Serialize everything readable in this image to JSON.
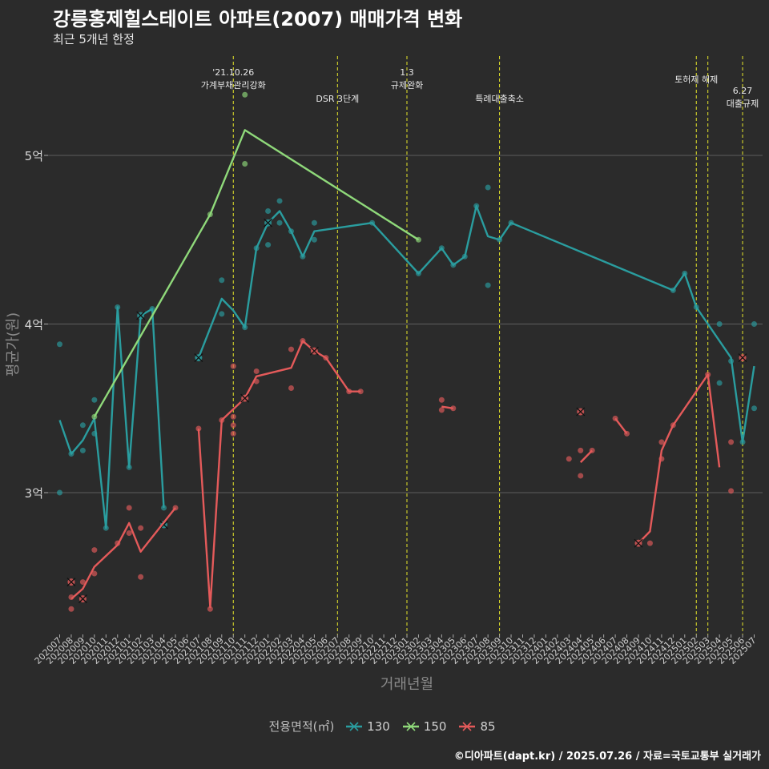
{
  "title": "강릉홍제힐스테이트 아파트(2007) 매매가격 변화",
  "subtitle": "최근 5개년 한정",
  "caption": "©디아파트(dapt.kr) / 2025.07.26 / 자료=국토교통부 실거래가",
  "legend": {
    "title": "전용면적(㎡)",
    "items": [
      {
        "label": "130",
        "color": "#2a9d9f"
      },
      {
        "label": "150",
        "color": "#8fd97a"
      },
      {
        "label": "85",
        "color": "#e45a5a"
      }
    ]
  },
  "chart_data": {
    "type": "line",
    "xlabel": "거래년월",
    "ylabel": "평균가(원)",
    "categories": [
      "202007",
      "202008",
      "202009",
      "202010",
      "202011",
      "202012",
      "202101",
      "202102",
      "202103",
      "202104",
      "202105",
      "202106",
      "202107",
      "202108",
      "202109",
      "202110",
      "202111",
      "202112",
      "202201",
      "202202",
      "202203",
      "202204",
      "202205",
      "202206",
      "202207",
      "202208",
      "202209",
      "202210",
      "202211",
      "202212",
      "202301",
      "202302",
      "202303",
      "202304",
      "202305",
      "202306",
      "202307",
      "202308",
      "202309",
      "202310",
      "202311",
      "202312",
      "202401",
      "202402",
      "202403",
      "202404",
      "202405",
      "202406",
      "202407",
      "202408",
      "202409",
      "202410",
      "202411",
      "202412",
      "202501",
      "202502",
      "202503",
      "202504",
      "202505",
      "202506",
      "202507"
    ],
    "y_ticks": [
      {
        "value": 3.0,
        "label": "3억"
      },
      {
        "value": 4.0,
        "label": "4억"
      },
      {
        "value": 5.0,
        "label": "5억"
      }
    ],
    "ylim": [
      2.15,
      5.6
    ],
    "grid": true,
    "legend_position": "bottom",
    "annotations": [
      {
        "x": "202110",
        "lines": [
          "'21.10.26",
          "가계부채관리강화"
        ],
        "row": "top"
      },
      {
        "x": "202207",
        "lines": [
          "DSR 3단계"
        ],
        "row": "low"
      },
      {
        "x": "202301",
        "lines": [
          "1.3",
          "규제완화"
        ],
        "row": "top"
      },
      {
        "x": "202309",
        "lines": [
          "특례대출축소"
        ],
        "row": "low"
      },
      {
        "x": "202502",
        "lines": [
          "토허제 해제"
        ],
        "row": "mid"
      },
      {
        "x": "202503",
        "lines": [],
        "row": "none"
      },
      {
        "x": "202506",
        "lines": [
          "6.27",
          "대출규제"
        ],
        "row": "top2"
      }
    ],
    "series": [
      {
        "name": "130",
        "color": "#2a9d9f",
        "line": [
          [
            [
              "202007",
              3.43
            ],
            [
              "202008",
              3.23
            ],
            [
              "202009",
              3.31
            ],
            [
              "202010",
              3.44
            ],
            [
              "202011",
              2.79
            ],
            [
              "202012",
              4.1
            ],
            [
              "202101",
              3.15
            ],
            [
              "202102",
              4.05
            ],
            [
              "202103",
              4.09
            ],
            [
              "202104",
              2.91
            ]
          ],
          [
            [
              "202107",
              3.8
            ],
            [
              "202109",
              4.15
            ],
            [
              "202110",
              4.08
            ],
            [
              "202111",
              3.98
            ],
            [
              "202112",
              4.45
            ],
            [
              "202201",
              4.6
            ],
            [
              "202202",
              4.67
            ],
            [
              "202203",
              4.55
            ],
            [
              "202204",
              4.4
            ],
            [
              "202205",
              4.55
            ],
            [
              "202210",
              4.6
            ],
            [
              "202302",
              4.3
            ],
            [
              "202304",
              4.45
            ],
            [
              "202305",
              4.35
            ],
            [
              "202306",
              4.4
            ],
            [
              "202307",
              4.7
            ],
            [
              "202308",
              4.52
            ],
            [
              "202309",
              4.5
            ],
            [
              "202310",
              4.6
            ],
            [
              "202412",
              4.2
            ],
            [
              "202501",
              4.3
            ],
            [
              "202502",
              4.1
            ],
            [
              "202505",
              3.8
            ],
            [
              "202506",
              3.3
            ],
            [
              "202507",
              3.75
            ]
          ]
        ],
        "points": [
          [
            "202007",
            3.88
          ],
          [
            "202007",
            3.0
          ],
          [
            "202008",
            3.23
          ],
          [
            "202009",
            3.4
          ],
          [
            "202009",
            3.25
          ],
          [
            "202010",
            3.55
          ],
          [
            "202010",
            3.35
          ],
          [
            "202011",
            2.79
          ],
          [
            "202012",
            4.1
          ],
          [
            "202101",
            3.15
          ],
          [
            "202103",
            4.09
          ],
          [
            "202104",
            2.91
          ],
          [
            "202107",
            3.8
          ],
          [
            "202109",
            4.26
          ],
          [
            "202109",
            4.06
          ],
          [
            "202111",
            3.98
          ],
          [
            "202112",
            4.45
          ],
          [
            "202201",
            4.67
          ],
          [
            "202201",
            4.47
          ],
          [
            "202202",
            4.73
          ],
          [
            "202202",
            4.6
          ],
          [
            "202203",
            4.55
          ],
          [
            "202204",
            4.4
          ],
          [
            "202205",
            4.6
          ],
          [
            "202205",
            4.5
          ],
          [
            "202210",
            4.6
          ],
          [
            "202302",
            4.3
          ],
          [
            "202304",
            4.45
          ],
          [
            "202305",
            4.35
          ],
          [
            "202306",
            4.4
          ],
          [
            "202307",
            4.7
          ],
          [
            "202308",
            4.81
          ],
          [
            "202308",
            4.23
          ],
          [
            "202309",
            4.5
          ],
          [
            "202310",
            4.6
          ],
          [
            "202412",
            4.2
          ],
          [
            "202501",
            4.3
          ],
          [
            "202502",
            4.1
          ],
          [
            "202504",
            4.0
          ],
          [
            "202504",
            3.65
          ],
          [
            "202505",
            3.78
          ],
          [
            "202506",
            3.3
          ],
          [
            "202507",
            4.0
          ],
          [
            "202507",
            3.5
          ]
        ],
        "crosses": [
          [
            "202102",
            4.05
          ],
          [
            "202104",
            2.81
          ],
          [
            "202107",
            3.8
          ],
          [
            "202201",
            4.6
          ]
        ]
      },
      {
        "name": "150",
        "color": "#8fd97a",
        "line": [
          [
            [
              "202010",
              3.45
            ],
            [
              "202108",
              4.65
            ],
            [
              "202111",
              5.15
            ],
            [
              "202302",
              4.5
            ]
          ]
        ],
        "points": [
          [
            "202010",
            3.45
          ],
          [
            "202108",
            4.65
          ],
          [
            "202111",
            5.36
          ],
          [
            "202111",
            4.95
          ],
          [
            "202302",
            4.5
          ]
        ],
        "crosses": []
      },
      {
        "name": "85",
        "color": "#e45a5a",
        "line": [
          [
            [
              "202008",
              2.37
            ],
            [
              "202009",
              2.43
            ],
            [
              "202010",
              2.56
            ],
            [
              "202012",
              2.69
            ],
            [
              "202101",
              2.82
            ],
            [
              "202102",
              2.65
            ],
            [
              "202105",
              2.91
            ]
          ],
          [
            [
              "202107",
              3.38
            ],
            [
              "202108",
              2.32
            ],
            [
              "202109",
              3.43
            ],
            [
              "202111",
              3.56
            ],
            [
              "202112",
              3.69
            ],
            [
              "202203",
              3.74
            ],
            [
              "202204",
              3.9
            ],
            [
              "202205",
              3.84
            ],
            [
              "202206",
              3.8
            ],
            [
              "202208",
              3.6
            ],
            [
              "202209",
              3.6
            ]
          ],
          [
            [
              "202304",
              3.51
            ],
            [
              "202305",
              3.5
            ]
          ],
          [
            [
              "202404",
              3.18
            ],
            [
              "202405",
              3.25
            ]
          ],
          [
            [
              "202407",
              3.44
            ],
            [
              "202408",
              3.35
            ]
          ],
          [
            [
              "202409",
              2.7
            ],
            [
              "202410",
              2.77
            ],
            [
              "202411",
              3.25
            ],
            [
              "202412",
              3.4
            ],
            [
              "202503",
              3.7
            ],
            [
              "202504",
              3.15
            ]
          ]
        ],
        "points": [
          [
            "202008",
            2.38
          ],
          [
            "202008",
            2.31
          ],
          [
            "202009",
            2.47
          ],
          [
            "202010",
            2.66
          ],
          [
            "202010",
            2.52
          ],
          [
            "202012",
            2.7
          ],
          [
            "202101",
            2.91
          ],
          [
            "202101",
            2.76
          ],
          [
            "202102",
            2.79
          ],
          [
            "202102",
            2.5
          ],
          [
            "202105",
            2.91
          ],
          [
            "202107",
            3.38
          ],
          [
            "202108",
            2.31
          ],
          [
            "202109",
            3.43
          ],
          [
            "202110",
            3.75
          ],
          [
            "202110",
            3.45
          ],
          [
            "202110",
            3.4
          ],
          [
            "202110",
            3.35
          ],
          [
            "202112",
            3.72
          ],
          [
            "202112",
            3.66
          ],
          [
            "202203",
            3.85
          ],
          [
            "202203",
            3.62
          ],
          [
            "202204",
            3.9
          ],
          [
            "202206",
            3.8
          ],
          [
            "202208",
            3.6
          ],
          [
            "202209",
            3.6
          ],
          [
            "202304",
            3.55
          ],
          [
            "202304",
            3.49
          ],
          [
            "202305",
            3.5
          ],
          [
            "202403",
            3.2
          ],
          [
            "202404",
            3.25
          ],
          [
            "202404",
            3.1
          ],
          [
            "202405",
            3.25
          ],
          [
            "202407",
            3.44
          ],
          [
            "202408",
            3.35
          ],
          [
            "202410",
            2.7
          ],
          [
            "202411",
            3.3
          ],
          [
            "202411",
            3.2
          ],
          [
            "202412",
            3.4
          ],
          [
            "202503",
            3.7
          ],
          [
            "202505",
            3.3
          ],
          [
            "202505",
            3.01
          ]
        ],
        "crosses": [
          [
            "202008",
            2.47
          ],
          [
            "202009",
            2.37
          ],
          [
            "202111",
            3.56
          ],
          [
            "202205",
            3.84
          ],
          [
            "202404",
            3.48
          ],
          [
            "202409",
            2.7
          ],
          [
            "202506",
            3.8
          ]
        ]
      }
    ]
  }
}
